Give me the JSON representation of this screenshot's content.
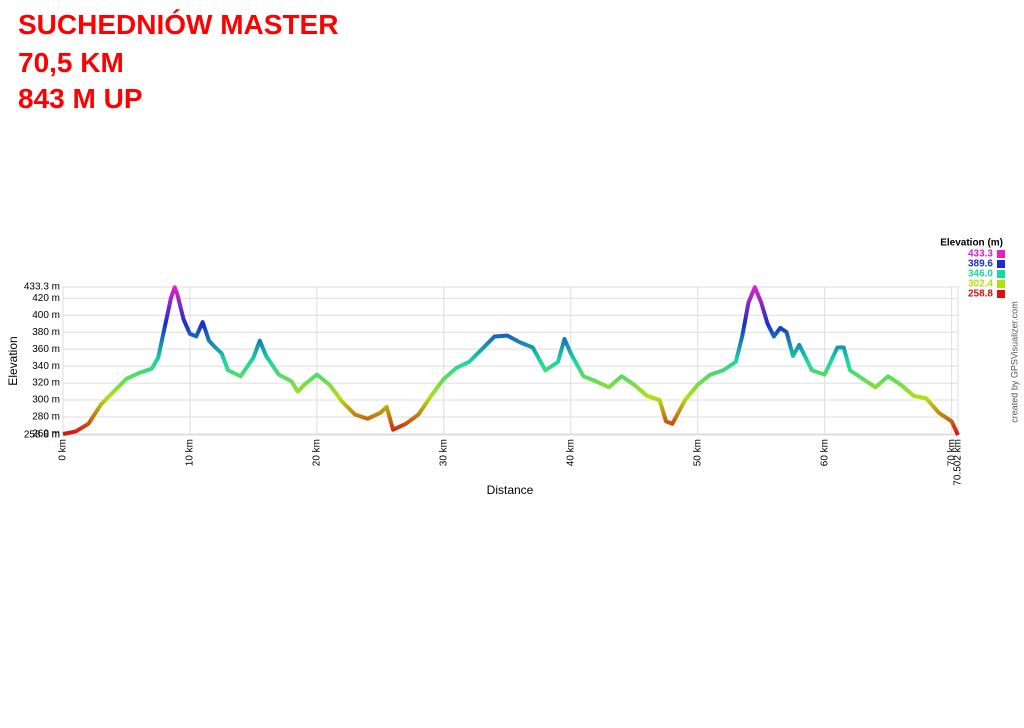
{
  "chart_data": {
    "type": "line",
    "title": [
      "SUCHEDNIÓW MASTER",
      "70,5 KM",
      "843 M UP"
    ],
    "xlabel": "Distance",
    "ylabel": "Elevation",
    "credit": "created by GPSVisualizer.com",
    "grid": true,
    "xlim": [
      0,
      70.502
    ],
    "ylim": [
      258.8,
      433.3
    ],
    "xticks": [
      {
        "value": 0,
        "label": "0 km"
      },
      {
        "value": 10,
        "label": "10 km"
      },
      {
        "value": 20,
        "label": "20 km"
      },
      {
        "value": 30,
        "label": "30 km"
      },
      {
        "value": 40,
        "label": "40 km"
      },
      {
        "value": 50,
        "label": "50 km"
      },
      {
        "value": 60,
        "label": "60 km"
      },
      {
        "value": 70,
        "label": "70 km"
      },
      {
        "value": 70.502,
        "label": "70.502 km"
      }
    ],
    "yticks": [
      {
        "value": 258.8,
        "label": "258.8 m"
      },
      {
        "value": 260,
        "label": "260 m"
      },
      {
        "value": 280,
        "label": "280 m"
      },
      {
        "value": 300,
        "label": "300 m"
      },
      {
        "value": 320,
        "label": "320 m"
      },
      {
        "value": 340,
        "label": "340 m"
      },
      {
        "value": 360,
        "label": "360 m"
      },
      {
        "value": 380,
        "label": "380 m"
      },
      {
        "value": 400,
        "label": "400 m"
      },
      {
        "value": 420,
        "label": "420 m"
      },
      {
        "value": 433.3,
        "label": "433.3 m"
      }
    ],
    "legend": {
      "title": "Elevation (m)",
      "values": [
        433.3,
        389.6,
        346.0,
        302.4,
        258.8
      ],
      "value_labels": [
        "433.3",
        "389.6",
        "346.0",
        "302.4",
        "258.8"
      ],
      "colors": [
        "#e020c8",
        "#1830c8",
        "#18d8a0",
        "#b0e010",
        "#d81010"
      ]
    },
    "x": [
      0,
      1,
      2,
      3,
      4,
      5,
      6,
      7,
      7.5,
      8,
      8.5,
      8.8,
      9,
      9.5,
      10,
      10.5,
      11,
      11.5,
      12,
      12.5,
      13,
      14,
      15,
      15.5,
      16,
      17,
      18,
      18.5,
      19,
      20,
      21,
      22,
      23,
      24,
      25,
      25.5,
      26,
      27,
      28,
      29,
      30,
      31,
      32,
      33,
      34,
      35,
      36,
      37,
      38,
      39,
      39.5,
      40,
      41,
      42,
      43,
      44,
      45,
      46,
      47,
      47.5,
      48,
      49,
      50,
      51,
      52,
      53,
      53.5,
      54,
      54.5,
      55,
      55.5,
      56,
      56.5,
      57,
      57.5,
      58,
      59,
      60,
      61,
      61.5,
      62,
      63,
      64,
      65,
      66,
      67,
      68,
      69,
      70,
      70.502
    ],
    "values": [
      260,
      263,
      272,
      295,
      310,
      325,
      332,
      337,
      350,
      385,
      420,
      433,
      425,
      395,
      378,
      375,
      392,
      370,
      362,
      355,
      335,
      328,
      350,
      370,
      352,
      330,
      322,
      310,
      318,
      330,
      318,
      298,
      283,
      278,
      285,
      292,
      265,
      272,
      283,
      305,
      325,
      338,
      345,
      360,
      375,
      376,
      368,
      362,
      335,
      345,
      372,
      355,
      328,
      322,
      315,
      328,
      318,
      305,
      300,
      275,
      272,
      300,
      318,
      330,
      335,
      345,
      375,
      415,
      433,
      415,
      390,
      375,
      385,
      380,
      352,
      365,
      335,
      330,
      362,
      362,
      335,
      325,
      315,
      328,
      318,
      305,
      302,
      285,
      275,
      258.8
    ]
  }
}
